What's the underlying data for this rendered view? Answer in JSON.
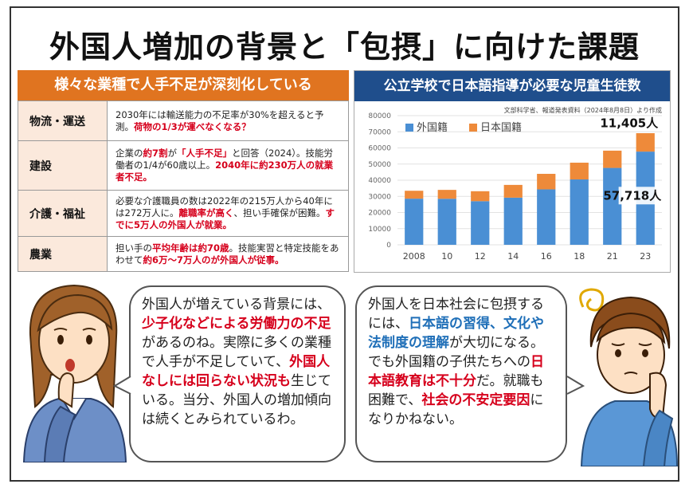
{
  "title": "外国人増加の背景と「包摂」に向けた課題",
  "table": {
    "header": "様々な業種で人手不足が深刻化している",
    "rows": [
      {
        "category": "物流・運送",
        "text_a": "2030年には輸送能力の不足率が30%を超えると予測。",
        "text_red": "荷物の1/3が運べなくなる？",
        "text_b": ""
      },
      {
        "category": "建設",
        "text_a": "企業の",
        "text_red1": "約7割",
        "text_mid": "が",
        "text_red2": "「人手不足」",
        "text_b": "と回答（2024）。技能労働者の1/4が60歳以上。",
        "text_red3": "2040年に約230万人の就業者不足。"
      },
      {
        "category": "介護・福祉",
        "text_a": "必要な介護職員の数は2022年の215万人から40年には272万人に。",
        "text_red1": "離職率が高く",
        "text_b": "、担い手確保が困難。",
        "text_red2": "すでに5万人の外国人が就業。"
      },
      {
        "category": "農業",
        "text_a": "担い手の",
        "text_red1": "平均年齢は約70歳",
        "text_b": "。技能実習と特定技能をあわせて",
        "text_red2": "約6万～7万人のが外国人が従事。"
      }
    ]
  },
  "chart_header": "公立学校で日本語指導が必要な児童生徒数",
  "chart_source": "文部科学省、報道発表資料（2024年8月8日）より作成",
  "chart_data": {
    "type": "bar",
    "stacked": true,
    "categories": [
      "2008",
      "10",
      "12",
      "14",
      "16",
      "18",
      "21",
      "23"
    ],
    "series": [
      {
        "name": "外国籍",
        "values": [
          28575,
          28511,
          27013,
          29198,
          34335,
          40485,
          47619,
          57718
        ],
        "color": "#4a8fd4"
      },
      {
        "name": "日本国籍",
        "values": [
          4895,
          5496,
          6171,
          7897,
          9612,
          10371,
          10688,
          11405
        ],
        "color": "#ee8a3a"
      }
    ],
    "ylim": [
      0,
      80000
    ],
    "yticks": [
      0,
      10000,
      20000,
      30000,
      40000,
      50000,
      60000,
      70000,
      80000
    ],
    "annotations": {
      "top": "11,405人",
      "bottom": "57,718人"
    },
    "legend": "top-left",
    "grid": true
  },
  "bubble_left": {
    "s1": "外国人が増えている背景には、",
    "s1r": "少子化などによる労働力の不足",
    "s2": "があるのね。実際に多くの業種で人手が不足していて、",
    "s2r": "外国人なしには回らない状況も",
    "s3": "生じている。当分、外国人の増加傾向は続くとみられているわ。"
  },
  "bubble_right": {
    "s1": "外国人を日本社会に包摂するには、",
    "s1b": "日本語の習得、文化や法制度の理解",
    "s2": "が大切になる。でも外国籍の子供たちへの",
    "s2r": "日本語教育は不十分",
    "s3": "だ。就職も困難で、",
    "s3r": "社会の不安定要因",
    "s4": "になりかねない。"
  }
}
